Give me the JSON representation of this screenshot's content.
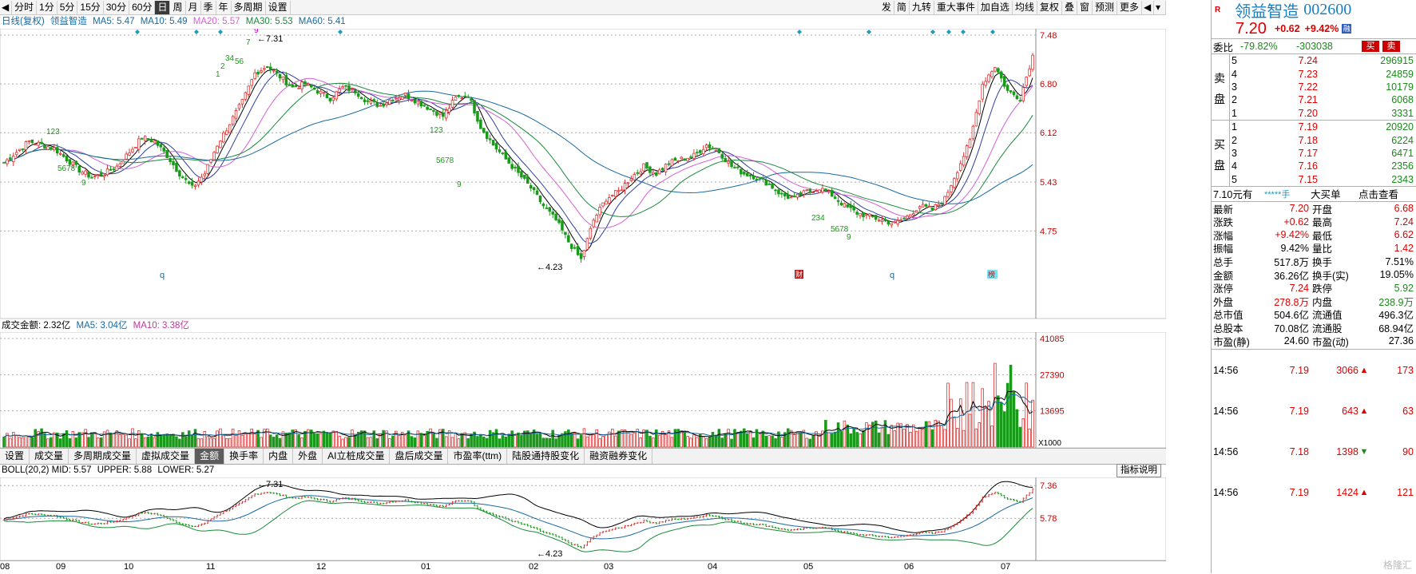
{
  "toolbar": {
    "left": [
      "分时",
      "1分",
      "5分",
      "15分",
      "30分",
      "60分",
      "日",
      "周",
      "月",
      "季",
      "年",
      "多周期",
      "设置"
    ],
    "active": "日",
    "right": [
      "发",
      "简",
      "九转",
      "重大事件",
      "加自选",
      "均线",
      "复权",
      "叠",
      "窗",
      "预测",
      "更多"
    ]
  },
  "main_legend": {
    "title": "日线(复权)",
    "name": "领益智造",
    "ma5": "MA5: 5.47",
    "ma10": "MA10: 5.49",
    "ma20": "MA20: 5.57",
    "ma30": "MA30: 5.53",
    "ma60": "MA60: 5.41"
  },
  "vol_legend": {
    "amount": "成交金额: 2.32亿",
    "ma5": "MA5: 3.04亿",
    "ma10": "MA10: 3.38亿"
  },
  "boll_legend": {
    "main": "BOLL(20,2) MID: 5.57",
    "upper": "UPPER: 5.88",
    "lower": "LOWER: 5.27",
    "help": "指标说明"
  },
  "tabs": [
    "设置",
    "成交量",
    "多周期成交量",
    "虚拟成交量",
    "金额",
    "换手率",
    "内盘",
    "外盘",
    "AI立桩成交量",
    "盘后成交量",
    "市盈率(ttm)",
    "陆股通持股变化",
    "融资融券变化"
  ],
  "active_tab": "金额",
  "x_axis": [
    "08",
    "09",
    "10",
    "11",
    "12",
    "01",
    "02",
    "03",
    "04",
    "05",
    "06",
    "07"
  ],
  "chart_data": [
    {
      "type": "candlestick",
      "price_ticks": [
        "7.48",
        "6.80",
        "6.12",
        "5.43",
        "4.75"
      ],
      "annotations": {
        "high": "7.31",
        "low": "4.23"
      },
      "markers": {
        "q1": "q",
        "q2": "q",
        "cai": "财",
        "lian": "榜"
      },
      "series": [
        {
          "name": "MA5",
          "color": "#000000"
        },
        {
          "name": "MA10",
          "color": "#2f3f9f"
        },
        {
          "name": "MA20",
          "color": "#d65fd6"
        },
        {
          "name": "MA30",
          "color": "#1a8a3a"
        },
        {
          "name": "MA60",
          "color": "#1a6aa0"
        }
      ],
      "closes": [
        5.7,
        5.85,
        6.0,
        5.95,
        5.9,
        5.75,
        5.6,
        5.5,
        5.55,
        5.65,
        5.85,
        6.05,
        6.0,
        5.8,
        5.55,
        5.35,
        5.55,
        5.95,
        6.25,
        6.55,
        6.95,
        7.05,
        6.9,
        6.75,
        6.8,
        6.7,
        6.6,
        6.75,
        6.7,
        6.55,
        6.5,
        6.6,
        6.65,
        6.55,
        6.45,
        6.35,
        6.6,
        6.65,
        6.2,
        5.95,
        5.75,
        5.55,
        5.35,
        5.1,
        4.9,
        4.6,
        4.35,
        4.9,
        5.2,
        5.3,
        5.5,
        5.65,
        5.55,
        5.7,
        5.75,
        5.8,
        5.95,
        5.85,
        5.65,
        5.55,
        5.5,
        5.4,
        5.25,
        5.2,
        5.3,
        5.35,
        5.25,
        5.1,
        5.0,
        4.95,
        4.9,
        4.85,
        4.95,
        5.1,
        5.05,
        5.2,
        5.6,
        6.0,
        6.8,
        7.05,
        6.7,
        6.6,
        7.2
      ],
      "price_range": [
        4.23,
        7.48
      ]
    },
    {
      "type": "bar",
      "name": "成交金额",
      "ticks": [
        "41085",
        "27390",
        "13695"
      ],
      "unit": "X1000",
      "range": [
        0,
        41085
      ],
      "ma5_color": "#000000",
      "ma10_color": "#1a6aa0"
    },
    {
      "type": "line",
      "name": "BOLL",
      "ticks": [
        "7.36",
        "5.78"
      ],
      "annotations": {
        "high": "7.31",
        "low": "4.23"
      },
      "series": [
        {
          "name": "MID",
          "color": "#1a6aa0"
        },
        {
          "name": "UPPER",
          "color": "#000000"
        },
        {
          "name": "LOWER",
          "color": "#1a8a3a"
        }
      ]
    }
  ],
  "quote": {
    "badge": "R",
    "name": "领益智造",
    "code": "002600",
    "price": "7.20",
    "change": "+0.62",
    "pct": "+9.42%",
    "rz": "融",
    "weibi_label": "委比",
    "weibi": "-79.82%",
    "weicha": "-303038",
    "buy": "买",
    "sell": "卖",
    "sell_side": "卖盘",
    "buy_side": "买盘",
    "asks": [
      {
        "n": "5",
        "p": "7.24",
        "v": "296915"
      },
      {
        "n": "4",
        "p": "7.23",
        "v": "24859"
      },
      {
        "n": "3",
        "p": "7.22",
        "v": "10179"
      },
      {
        "n": "2",
        "p": "7.21",
        "v": "6068"
      },
      {
        "n": "1",
        "p": "7.20",
        "v": "3331"
      }
    ],
    "bids": [
      {
        "n": "1",
        "p": "7.19",
        "v": "20920"
      },
      {
        "n": "2",
        "p": "7.18",
        "v": "6224"
      },
      {
        "n": "3",
        "p": "7.17",
        "v": "6471"
      },
      {
        "n": "4",
        "p": "7.16",
        "v": "2356"
      },
      {
        "n": "5",
        "p": "7.15",
        "v": "2343"
      }
    ],
    "big_order": {
      "a": "7.10元有",
      "b": "*****手",
      "c": "大买单",
      "d": "点击查看"
    },
    "stats": [
      {
        "k": "最新",
        "v": "7.20",
        "vc": "red",
        "k2": "开盘",
        "v2": "6.68",
        "v2c": "red"
      },
      {
        "k": "涨跌",
        "v": "+0.62",
        "vc": "red",
        "k2": "最高",
        "v2": "7.24",
        "v2c": "red"
      },
      {
        "k": "涨幅",
        "v": "+9.42%",
        "vc": "red",
        "k2": "最低",
        "v2": "6.62",
        "v2c": "red"
      },
      {
        "k": "振幅",
        "v": "9.42%",
        "vc": "",
        "k2": "量比",
        "v2": "1.42",
        "v2c": "red"
      },
      {
        "k": "总手",
        "v": "517.8万",
        "vc": "",
        "k2": "换手",
        "v2": "7.51%",
        "v2c": ""
      },
      {
        "k": "金额",
        "v": "36.26亿",
        "vc": "",
        "k2": "换手(实)",
        "v2": "19.05%",
        "v2c": ""
      },
      {
        "k": "涨停",
        "v": "7.24",
        "vc": "red",
        "k2": "跌停",
        "v2": "5.92",
        "v2c": "grn"
      },
      {
        "k": "外盘",
        "v": "278.8万",
        "vc": "red",
        "k2": "内盘",
        "v2": "238.9万",
        "v2c": "grn"
      },
      {
        "k": "总市值",
        "v": "504.6亿",
        "vc": "",
        "k2": "流通值",
        "v2": "496.3亿",
        "v2c": ""
      },
      {
        "k": "总股本",
        "v": "70.08亿",
        "vc": "",
        "k2": "流通股",
        "v2": "68.94亿",
        "v2c": ""
      },
      {
        "k": "市盈(静)",
        "v": "24.60",
        "vc": "",
        "k2": "市盈(动)",
        "v2": "27.36",
        "v2c": ""
      }
    ],
    "ticks": [
      {
        "t": "14:56",
        "p": "7.19",
        "v": "3066",
        "d": "up",
        "n": "173"
      },
      {
        "t": "14:56",
        "p": "7.19",
        "v": "643",
        "d": "up",
        "n": "63"
      },
      {
        "t": "14:56",
        "p": "7.18",
        "v": "1398",
        "d": "down",
        "n": "90"
      },
      {
        "t": "14:56",
        "p": "7.19",
        "v": "1424",
        "d": "up",
        "n": "121"
      }
    ],
    "watermark": "格隆汇"
  }
}
